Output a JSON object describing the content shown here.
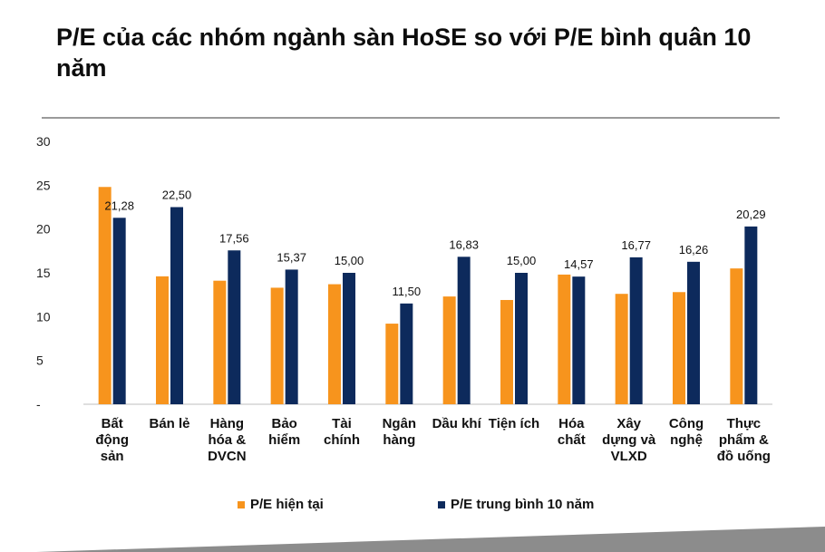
{
  "title": "P/E của các nhóm ngành sàn HoSE so với P/E bình quân 10 năm",
  "colors": {
    "current": "#F7941D",
    "avg10": "#0D2A5C"
  },
  "chart_data": {
    "type": "bar",
    "title": "P/E của các nhóm ngành sàn HoSE so với P/E bình quân 10 năm",
    "categories": [
      [
        "Bất",
        "động",
        "sản"
      ],
      [
        "Bán lẻ"
      ],
      [
        "Hàng",
        "hóa &",
        "DVCN"
      ],
      [
        "Bảo",
        "hiểm"
      ],
      [
        "Tài",
        "chính"
      ],
      [
        "Ngân",
        "hàng"
      ],
      [
        "Dầu khí"
      ],
      [
        "Tiện ích"
      ],
      [
        "Hóa",
        "chất"
      ],
      [
        "Xây",
        "dựng và",
        "VLXD"
      ],
      [
        "Công",
        "nghệ"
      ],
      [
        "Thực",
        "phẩm &",
        "đồ uống"
      ]
    ],
    "series": [
      {
        "name": "P/E hiện tại",
        "values": [
          24.8,
          14.6,
          14.1,
          13.3,
          13.7,
          9.2,
          12.3,
          11.9,
          14.8,
          12.6,
          12.8,
          15.5
        ]
      },
      {
        "name": "P/E trung bình 10 năm",
        "values": [
          21.28,
          22.5,
          17.56,
          15.37,
          15.0,
          11.5,
          16.83,
          15.0,
          14.57,
          16.77,
          16.26,
          20.29
        ],
        "labels": [
          "21,28",
          "22,50",
          "17,56",
          "15,37",
          "15,00",
          "11,50",
          "16,83",
          "15,00",
          "14,57",
          "16,77",
          "16,26",
          "20,29"
        ]
      }
    ],
    "ylim": [
      0,
      30
    ],
    "yticks": [
      "-",
      "5",
      "10",
      "15",
      "20",
      "25",
      "30"
    ],
    "grid": false,
    "legend": "bottom"
  }
}
